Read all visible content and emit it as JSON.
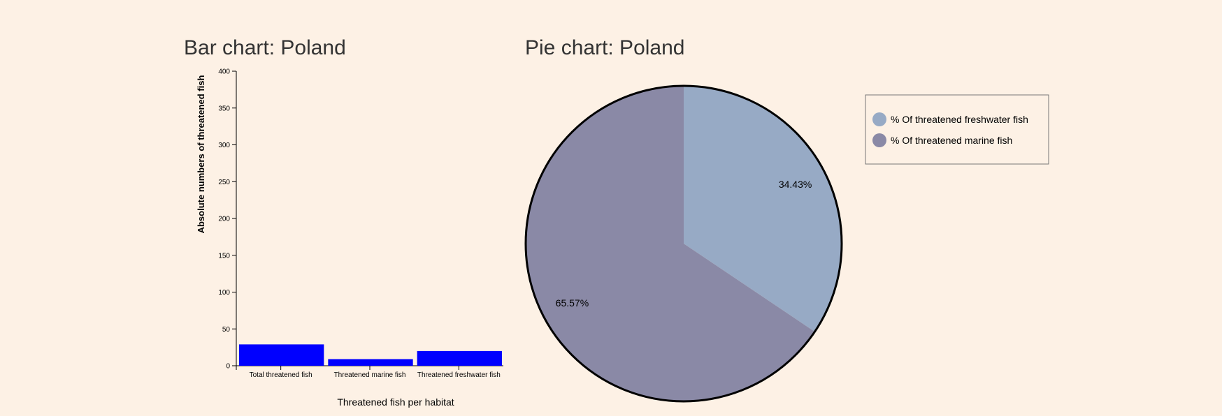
{
  "bar_title": "Bar chart: Poland",
  "pie_title": "Pie chart: Poland",
  "chart_data": [
    {
      "type": "bar",
      "title": "Bar chart: Poland",
      "categories": [
        "Total threatened fish",
        "Threatened marine fish",
        "Threatened freshwater fish"
      ],
      "values": [
        29,
        9,
        20
      ],
      "xlabel": "Threatened fish per habitat",
      "ylabel": "Absolute numbers of threatened fish",
      "ylim": [
        0,
        400
      ],
      "yticks": [
        0,
        50,
        100,
        150,
        200,
        250,
        300,
        350,
        400
      ],
      "bar_color": "#0000ff",
      "grid": false
    },
    {
      "type": "pie",
      "title": "Pie chart: Poland",
      "slices": [
        {
          "label": "% Of threatened freshwater fish",
          "value": 34.43,
          "display": "34.43%",
          "color": "#97aac5"
        },
        {
          "label": "% Of threatened marine fish",
          "value": 65.57,
          "display": "65.57%",
          "color": "#8a89a6"
        }
      ],
      "legend_position": "right"
    }
  ]
}
